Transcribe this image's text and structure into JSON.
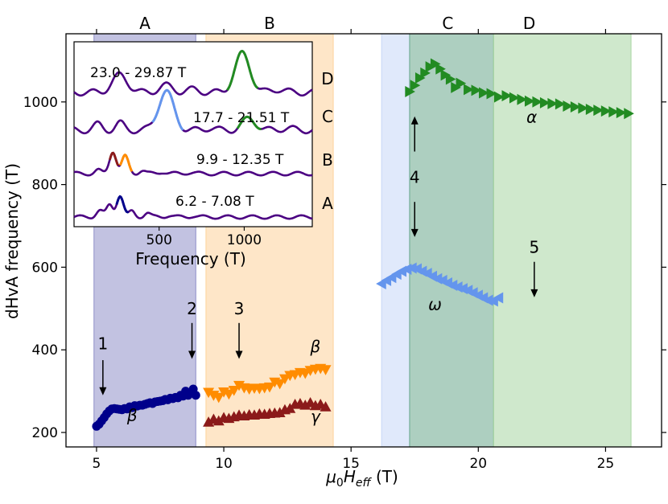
{
  "chart_data": {
    "type": "scatter",
    "xlabel_base": "μ",
    "xlabel_sub0": "0",
    "xlabel_mid": "H",
    "xlabel_sub1": "eff",
    "xlabel_unit": " (T)",
    "ylabel": "dHvA frequency (T)",
    "xlim": [
      3.8,
      27.2
    ],
    "ylim": [
      165,
      1165
    ],
    "xticks": [
      "5",
      "10",
      "15",
      "20",
      "25"
    ],
    "xtick_values": [
      5,
      10,
      15,
      20,
      25
    ],
    "yticks": [
      "200",
      "400",
      "600",
      "800",
      "1000"
    ],
    "ytick_values": [
      200,
      400,
      600,
      800,
      1000
    ],
    "bands": [
      {
        "label": "A",
        "range": [
          4.9,
          8.9
        ],
        "color": "#8f8fc8"
      },
      {
        "label": "B",
        "range": [
          9.3,
          14.3
        ],
        "color": "#fdd29a"
      },
      {
        "label": "",
        "range": [
          16.2,
          17.3
        ],
        "color": "#c7d7f7"
      },
      {
        "label": "C",
        "range": [
          17.3,
          20.6
        ],
        "color": "#6aa78c"
      },
      {
        "label": "D",
        "range": [
          20.6,
          26.0
        ],
        "color": "#a8d6a2"
      }
    ],
    "top_labels": [
      {
        "text": "A",
        "x": 6.9
      },
      {
        "text": "B",
        "x": 11.8
      },
      {
        "text": "C",
        "x": 18.8
      },
      {
        "text": "D",
        "x": 22.0
      }
    ],
    "series": [
      {
        "name": "β (A)",
        "marker": "circle",
        "color": "#00008b",
        "x": [
          5.0,
          5.1,
          5.2,
          5.3,
          5.4,
          5.5,
          5.6,
          5.7,
          5.8,
          5.9,
          6.0,
          6.1,
          6.2,
          6.3,
          6.4,
          6.5,
          6.6,
          6.7,
          6.8,
          6.9,
          7.0,
          7.1,
          7.2,
          7.3,
          7.4,
          7.5,
          7.6,
          7.7,
          7.8,
          7.9,
          8.0,
          8.1,
          8.2,
          8.3,
          8.4,
          8.5,
          8.6,
          8.7,
          8.8,
          8.9
        ],
        "y": [
          215,
          220,
          228,
          236,
          245,
          252,
          257,
          258,
          257,
          256,
          255,
          258,
          257,
          262,
          260,
          265,
          264,
          266,
          266,
          268,
          270,
          272,
          270,
          274,
          275,
          276,
          277,
          280,
          279,
          283,
          282,
          285,
          284,
          290,
          288,
          300,
          290,
          295,
          305,
          290
        ]
      },
      {
        "name": "β (B)",
        "marker": "triangle-down",
        "color": "#ff8c00",
        "x": [
          9.4,
          9.6,
          9.8,
          10.0,
          10.2,
          10.4,
          10.6,
          10.8,
          11.0,
          11.2,
          11.4,
          11.6,
          11.8,
          12.0,
          12.2,
          12.4,
          12.6,
          12.8,
          13.0,
          13.2,
          13.4,
          13.6,
          13.8,
          14.0
        ],
        "y": [
          297,
          290,
          285,
          298,
          293,
          302,
          314,
          308,
          305,
          307,
          306,
          308,
          310,
          322,
          318,
          330,
          338,
          340,
          345,
          343,
          350,
          353,
          355,
          352
        ]
      },
      {
        "name": "γ",
        "marker": "triangle-up",
        "color": "#8b1a1a",
        "x": [
          9.4,
          9.6,
          9.8,
          10.0,
          10.2,
          10.4,
          10.6,
          10.8,
          11.0,
          11.2,
          11.4,
          11.6,
          11.8,
          12.0,
          12.2,
          12.4,
          12.6,
          12.8,
          13.0,
          13.2,
          13.4,
          13.6,
          13.8,
          14.0
        ],
        "y": [
          225,
          232,
          228,
          236,
          234,
          238,
          242,
          240,
          243,
          242,
          245,
          244,
          246,
          247,
          248,
          255,
          258,
          268,
          270,
          266,
          272,
          265,
          268,
          262
        ]
      },
      {
        "name": "ω",
        "marker": "triangle-left",
        "color": "#6495ed",
        "x": [
          16.2,
          16.4,
          16.6,
          16.8,
          17.0,
          17.2,
          17.4,
          17.6,
          17.8,
          18.0,
          18.2,
          18.4,
          18.6,
          18.8,
          19.0,
          19.2,
          19.4,
          19.6,
          19.8,
          20.0,
          20.2,
          20.4,
          20.6,
          20.8
        ],
        "y": [
          560,
          568,
          575,
          583,
          590,
          595,
          598,
          596,
          590,
          585,
          578,
          572,
          568,
          562,
          556,
          552,
          548,
          544,
          538,
          532,
          526,
          520,
          518,
          526
        ]
      },
      {
        "name": "α",
        "marker": "triangle-right",
        "color": "#228b22",
        "x": [
          17.3,
          17.5,
          17.7,
          17.9,
          18.1,
          18.3,
          18.5,
          18.7,
          18.9,
          19.1,
          19.3,
          19.6,
          19.9,
          20.2,
          20.5,
          20.8,
          21.1,
          21.4,
          21.7,
          22.0,
          22.3,
          22.6,
          22.9,
          23.2,
          23.5,
          23.8,
          24.1,
          24.4,
          24.7,
          25.0,
          25.3,
          25.6,
          25.9
        ],
        "y": [
          1025,
          1040,
          1058,
          1070,
          1085,
          1092,
          1080,
          1065,
          1055,
          1035,
          1045,
          1030,
          1028,
          1022,
          1020,
          1012,
          1015,
          1010,
          1006,
          1002,
          1000,
          998,
          996,
          995,
          990,
          988,
          985,
          982,
          980,
          978,
          976,
          974,
          972
        ]
      }
    ],
    "greek_labels": [
      {
        "text": "β",
        "x": 6.4,
        "y": 228
      },
      {
        "text": "β",
        "x": 13.6,
        "y": 395
      },
      {
        "text": "γ",
        "x": 13.6,
        "y": 225
      },
      {
        "text": "ω",
        "x": 18.3,
        "y": 497
      },
      {
        "text": "α",
        "x": 22.1,
        "y": 950
      }
    ],
    "arrows": [
      {
        "label": "1",
        "x": 5.25,
        "y_label": 415,
        "y_from": 375,
        "y_to": 290
      },
      {
        "label": "2",
        "x": 8.75,
        "y_label": 500,
        "y_from": 465,
        "y_to": 378
      },
      {
        "label": "3",
        "x": 10.6,
        "y_label": 500,
        "y_from": 465,
        "y_to": 378
      },
      {
        "label": "4",
        "x": 17.5,
        "y_label": 818,
        "y_from": 880,
        "y_to": 965,
        "y_from2": 758,
        "y_to2": 673
      },
      {
        "label": "5",
        "x": 22.2,
        "y_label": 648,
        "y_from": 613,
        "y_to": 527
      }
    ],
    "inset": {
      "xlabel": "Frequency (T)",
      "xlim": [
        0,
        1400
      ],
      "xticks": [
        "500",
        "1000"
      ],
      "xtick_values": [
        500,
        1000
      ],
      "traces": [
        {
          "label": "A",
          "field_range": "6.2 - 7.08 T",
          "color": "#4b0082",
          "highlight": [
            {
              "range": [
                250,
                320
              ],
              "color": "#00008b"
            }
          ]
        },
        {
          "label": "B",
          "field_range": "9.9 - 12.35 T",
          "color": "#4b0082",
          "highlight": [
            {
              "range": [
                210,
                260
              ],
              "color": "#8b1a1a"
            },
            {
              "range": [
                270,
                340
              ],
              "color": "#ff8c00"
            }
          ]
        },
        {
          "label": "C",
          "field_range": "17.7 - 21.51 T",
          "color": "#4b0082",
          "highlight": [
            {
              "range": [
                460,
                640
              ],
              "color": "#6495ed"
            },
            {
              "range": [
                960,
                1100
              ],
              "color": "#228b22"
            }
          ]
        },
        {
          "label": "D",
          "field_range": "23.0 - 29.87 T",
          "color": "#4b0082",
          "highlight": [
            {
              "range": [
                900,
                1080
              ],
              "color": "#228b22"
            }
          ]
        }
      ]
    }
  }
}
